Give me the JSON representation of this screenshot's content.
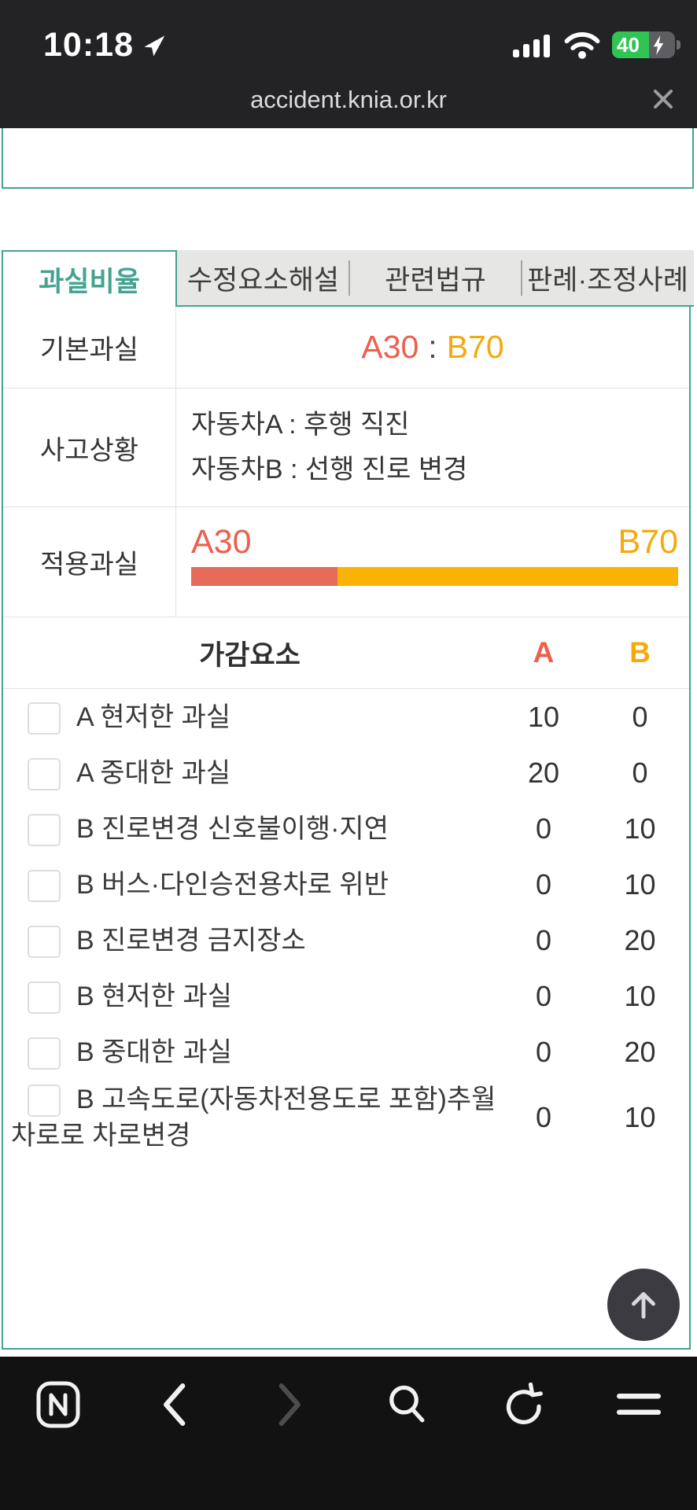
{
  "status_bar": {
    "time": "10:18",
    "battery_percent": "40"
  },
  "url_bar": {
    "url": "accident.knia.or.kr"
  },
  "tabs": [
    {
      "label": "과실비율",
      "active": true
    },
    {
      "label": "수정요소해설",
      "active": false
    },
    {
      "label": "관련법규",
      "active": false
    },
    {
      "label": "판례·조정사례",
      "active": false
    }
  ],
  "fault_table": {
    "basic": {
      "label": "기본과실",
      "a_value": "A30",
      "separator": ":",
      "b_value": "B70"
    },
    "situation": {
      "label": "사고상황",
      "line1": "자동차A : 후행 직진",
      "line2": "자동차B : 선행 진로 변경"
    },
    "applied": {
      "label": "적용과실",
      "a_label": "A30",
      "b_label": "B70",
      "a_percent": 30,
      "b_percent": 70
    }
  },
  "factors": {
    "header": {
      "title": "가감요소",
      "col_a": "A",
      "col_b": "B"
    },
    "rows": [
      {
        "label": "A 현저한 과실",
        "a": "10",
        "b": "0"
      },
      {
        "label": "A 중대한 과실",
        "a": "20",
        "b": "0"
      },
      {
        "label": "B 진로변경 신호불이행·지연",
        "a": "0",
        "b": "10"
      },
      {
        "label": "B 버스·다인승전용차로 위반",
        "a": "0",
        "b": "10"
      },
      {
        "label": "B 진로변경 금지장소",
        "a": "0",
        "b": "20"
      },
      {
        "label": "B 현저한 과실",
        "a": "0",
        "b": "10"
      },
      {
        "label": "B 중대한 과실",
        "a": "0",
        "b": "20"
      },
      {
        "label": "B 고속도로(자동차전용도로 포함)추월차로로 차로변경",
        "a": "0",
        "b": "10"
      }
    ]
  },
  "colors": {
    "accent_teal": "#44a390",
    "fault_a_red": "#ec604e",
    "fault_b_orange": "#f6a90a",
    "bar_red": "#e56b5b",
    "bar_yellow": "#f8b305",
    "battery_green": "#30c553"
  }
}
